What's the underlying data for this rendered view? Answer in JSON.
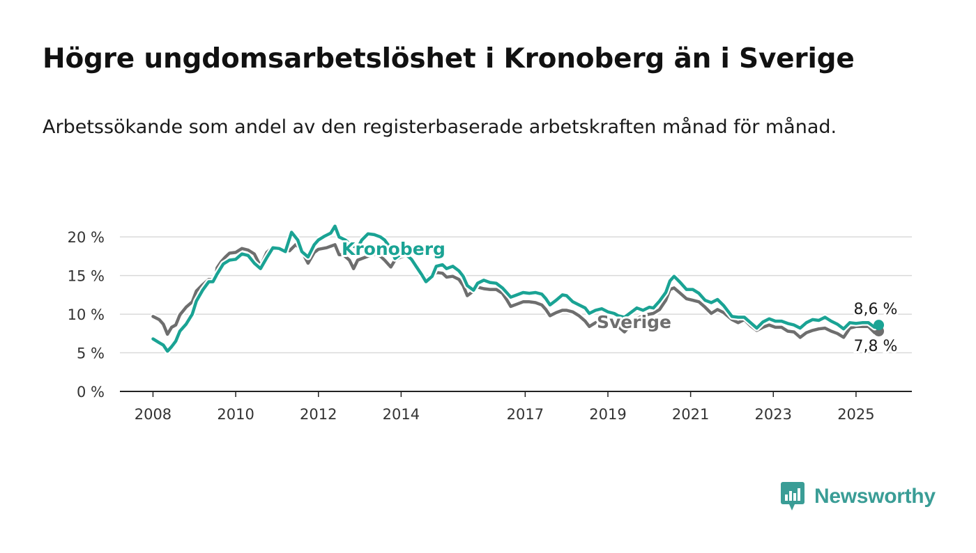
{
  "title": "Högre ungdomsarbetslöshet i Kronoberg än i Sverige",
  "subtitle": "Arbetssökande som andel av den registerbaserade arbetskraften månad för månad.",
  "logo": {
    "text": "Newsworthy",
    "color": "#3a9d96"
  },
  "chart_data": {
    "type": "line",
    "y_ticks": [
      "0 %",
      "5 %",
      "10 %",
      "15 %",
      "20 %"
    ],
    "y_tick_values": [
      0,
      5,
      10,
      15,
      20
    ],
    "ylim": [
      0,
      22
    ],
    "x_ticks": [
      "2008",
      "2010",
      "2012",
      "2014",
      "2017",
      "2019",
      "2021",
      "2023",
      "2025"
    ],
    "x_tick_values": [
      2008,
      2010,
      2012,
      2014,
      2017,
      2019,
      2021,
      2023,
      2025
    ],
    "xlim": [
      2007.2,
      2026.35
    ],
    "grid": true,
    "series": [
      {
        "name": "Sverige",
        "color": "#6e6e6e",
        "end_label": "7,8 %",
        "points": [
          [
            2008.0,
            9.7
          ],
          [
            2008.15,
            9.3
          ],
          [
            2008.25,
            8.7
          ],
          [
            2008.35,
            7.4
          ],
          [
            2008.45,
            8.3
          ],
          [
            2008.55,
            8.6
          ],
          [
            2008.65,
            9.9
          ],
          [
            2008.8,
            10.9
          ],
          [
            2008.95,
            11.6
          ],
          [
            2009.05,
            13.0
          ],
          [
            2009.2,
            13.8
          ],
          [
            2009.35,
            14.5
          ],
          [
            2009.5,
            14.4
          ],
          [
            2009.55,
            16.0
          ],
          [
            2009.65,
            16.8
          ],
          [
            2009.75,
            17.4
          ],
          [
            2009.85,
            17.9
          ],
          [
            2010.0,
            18.0
          ],
          [
            2010.15,
            18.5
          ],
          [
            2010.3,
            18.3
          ],
          [
            2010.45,
            17.8
          ],
          [
            2010.6,
            16.2
          ],
          [
            2010.75,
            18.0
          ],
          [
            2010.9,
            18.7
          ],
          [
            2011.1,
            18.4
          ],
          [
            2011.3,
            18.2
          ],
          [
            2011.45,
            19.0
          ],
          [
            2011.55,
            18.6
          ],
          [
            2011.65,
            17.6
          ],
          [
            2011.75,
            16.6
          ],
          [
            2011.9,
            18.0
          ],
          [
            2012.0,
            18.4
          ],
          [
            2012.2,
            18.6
          ],
          [
            2012.3,
            18.8
          ],
          [
            2012.4,
            19.0
          ],
          [
            2012.5,
            17.7
          ],
          [
            2012.6,
            17.7
          ],
          [
            2012.75,
            17.0
          ],
          [
            2012.85,
            15.9
          ],
          [
            2012.95,
            17.0
          ],
          [
            2013.1,
            17.3
          ],
          [
            2013.25,
            17.6
          ],
          [
            2013.4,
            17.8
          ],
          [
            2013.5,
            17.5
          ],
          [
            2013.6,
            17.0
          ],
          [
            2013.75,
            16.1
          ],
          [
            2013.85,
            17.0
          ],
          [
            2013.95,
            17.3
          ],
          [
            2014.1,
            17.6
          ],
          [
            2014.25,
            17.1
          ],
          [
            2014.35,
            16.2
          ],
          [
            2014.5,
            15.3
          ],
          [
            2014.6,
            14.2
          ],
          [
            2014.75,
            14.8
          ],
          [
            2014.85,
            15.4
          ],
          [
            2015.0,
            15.3
          ],
          [
            2015.1,
            14.8
          ],
          [
            2015.25,
            14.9
          ],
          [
            2015.4,
            14.5
          ],
          [
            2015.5,
            13.7
          ],
          [
            2015.6,
            12.4
          ],
          [
            2015.75,
            13.0
          ],
          [
            2015.85,
            13.5
          ],
          [
            2016.0,
            13.3
          ],
          [
            2016.15,
            13.2
          ],
          [
            2016.3,
            13.2
          ],
          [
            2016.45,
            12.7
          ],
          [
            2016.55,
            11.9
          ],
          [
            2016.65,
            11.0
          ],
          [
            2016.8,
            11.3
          ],
          [
            2016.95,
            11.6
          ],
          [
            2017.1,
            11.6
          ],
          [
            2017.25,
            11.5
          ],
          [
            2017.4,
            11.2
          ],
          [
            2017.5,
            10.6
          ],
          [
            2017.6,
            9.8
          ],
          [
            2017.75,
            10.2
          ],
          [
            2017.9,
            10.5
          ],
          [
            2018.0,
            10.5
          ],
          [
            2018.15,
            10.3
          ],
          [
            2018.3,
            9.8
          ],
          [
            2018.45,
            9.1
          ],
          [
            2018.55,
            8.4
          ],
          [
            2018.7,
            8.9
          ],
          [
            2018.85,
            9.2
          ],
          [
            2019.0,
            9.2
          ],
          [
            2019.15,
            8.8
          ],
          [
            2019.25,
            8.4
          ],
          [
            2019.4,
            7.7
          ],
          [
            2019.55,
            8.6
          ],
          [
            2019.7,
            9.4
          ],
          [
            2019.85,
            9.8
          ],
          [
            2020.0,
            10.0
          ],
          [
            2020.1,
            10.1
          ],
          [
            2020.25,
            10.6
          ],
          [
            2020.4,
            11.8
          ],
          [
            2020.5,
            13.2
          ],
          [
            2020.6,
            13.4
          ],
          [
            2020.75,
            12.7
          ],
          [
            2020.9,
            12.0
          ],
          [
            2021.05,
            11.8
          ],
          [
            2021.2,
            11.6
          ],
          [
            2021.35,
            10.9
          ],
          [
            2021.5,
            10.1
          ],
          [
            2021.65,
            10.6
          ],
          [
            2021.8,
            10.2
          ],
          [
            2022.0,
            9.3
          ],
          [
            2022.15,
            8.9
          ],
          [
            2022.3,
            9.3
          ],
          [
            2022.45,
            8.5
          ],
          [
            2022.6,
            7.9
          ],
          [
            2022.75,
            8.3
          ],
          [
            2022.9,
            8.6
          ],
          [
            2023.05,
            8.3
          ],
          [
            2023.2,
            8.3
          ],
          [
            2023.35,
            7.8
          ],
          [
            2023.5,
            7.7
          ],
          [
            2023.65,
            7.0
          ],
          [
            2023.8,
            7.6
          ],
          [
            2023.95,
            7.9
          ],
          [
            2024.1,
            8.1
          ],
          [
            2024.25,
            8.2
          ],
          [
            2024.4,
            7.8
          ],
          [
            2024.55,
            7.5
          ],
          [
            2024.7,
            7.0
          ],
          [
            2024.85,
            8.2
          ],
          [
            2025.0,
            8.4
          ],
          [
            2025.15,
            8.4
          ],
          [
            2025.3,
            8.4
          ],
          [
            2025.45,
            7.6
          ],
          [
            2025.55,
            7.8
          ]
        ]
      },
      {
        "name": "Kronoberg",
        "color": "#1aa394",
        "end_label": "8,6 %",
        "points": [
          [
            2008.0,
            6.8
          ],
          [
            2008.15,
            6.3
          ],
          [
            2008.25,
            6.0
          ],
          [
            2008.35,
            5.2
          ],
          [
            2008.45,
            5.8
          ],
          [
            2008.55,
            6.5
          ],
          [
            2008.65,
            7.8
          ],
          [
            2008.8,
            8.7
          ],
          [
            2008.95,
            10.0
          ],
          [
            2009.05,
            11.7
          ],
          [
            2009.2,
            13.1
          ],
          [
            2009.35,
            14.2
          ],
          [
            2009.45,
            14.2
          ],
          [
            2009.55,
            15.2
          ],
          [
            2009.7,
            16.5
          ],
          [
            2009.85,
            17.0
          ],
          [
            2010.0,
            17.1
          ],
          [
            2010.15,
            17.8
          ],
          [
            2010.3,
            17.6
          ],
          [
            2010.45,
            16.6
          ],
          [
            2010.6,
            15.9
          ],
          [
            2010.75,
            17.3
          ],
          [
            2010.9,
            18.6
          ],
          [
            2011.05,
            18.5
          ],
          [
            2011.2,
            18.1
          ],
          [
            2011.35,
            20.6
          ],
          [
            2011.5,
            19.6
          ],
          [
            2011.6,
            18.1
          ],
          [
            2011.75,
            17.4
          ],
          [
            2011.9,
            19.0
          ],
          [
            2012.0,
            19.6
          ],
          [
            2012.15,
            20.1
          ],
          [
            2012.3,
            20.5
          ],
          [
            2012.4,
            21.4
          ],
          [
            2012.5,
            20.0
          ],
          [
            2012.65,
            19.6
          ],
          [
            2012.8,
            18.9
          ],
          [
            2012.95,
            18.6
          ],
          [
            2013.05,
            19.6
          ],
          [
            2013.2,
            20.4
          ],
          [
            2013.35,
            20.3
          ],
          [
            2013.5,
            20.0
          ],
          [
            2013.6,
            19.6
          ],
          [
            2013.75,
            18.5
          ],
          [
            2013.85,
            17.2
          ],
          [
            2013.95,
            17.6
          ],
          [
            2014.1,
            17.8
          ],
          [
            2014.25,
            17.1
          ],
          [
            2014.35,
            16.3
          ],
          [
            2014.5,
            15.1
          ],
          [
            2014.6,
            14.2
          ],
          [
            2014.75,
            14.9
          ],
          [
            2014.85,
            16.2
          ],
          [
            2015.0,
            16.4
          ],
          [
            2015.1,
            15.9
          ],
          [
            2015.25,
            16.2
          ],
          [
            2015.4,
            15.6
          ],
          [
            2015.5,
            14.9
          ],
          [
            2015.6,
            13.7
          ],
          [
            2015.75,
            13.1
          ],
          [
            2015.85,
            14.0
          ],
          [
            2016.0,
            14.4
          ],
          [
            2016.15,
            14.1
          ],
          [
            2016.3,
            14.0
          ],
          [
            2016.45,
            13.4
          ],
          [
            2016.55,
            12.8
          ],
          [
            2016.65,
            12.2
          ],
          [
            2016.8,
            12.5
          ],
          [
            2016.95,
            12.8
          ],
          [
            2017.1,
            12.7
          ],
          [
            2017.25,
            12.8
          ],
          [
            2017.4,
            12.6
          ],
          [
            2017.5,
            12.0
          ],
          [
            2017.6,
            11.2
          ],
          [
            2017.75,
            11.8
          ],
          [
            2017.9,
            12.5
          ],
          [
            2018.0,
            12.4
          ],
          [
            2018.15,
            11.6
          ],
          [
            2018.3,
            11.2
          ],
          [
            2018.45,
            10.8
          ],
          [
            2018.55,
            10.1
          ],
          [
            2018.7,
            10.5
          ],
          [
            2018.85,
            10.7
          ],
          [
            2019.0,
            10.3
          ],
          [
            2019.15,
            10.1
          ],
          [
            2019.25,
            9.8
          ],
          [
            2019.4,
            9.6
          ],
          [
            2019.55,
            10.2
          ],
          [
            2019.7,
            10.8
          ],
          [
            2019.85,
            10.5
          ],
          [
            2020.0,
            10.9
          ],
          [
            2020.1,
            10.8
          ],
          [
            2020.25,
            11.7
          ],
          [
            2020.4,
            12.8
          ],
          [
            2020.5,
            14.3
          ],
          [
            2020.6,
            14.9
          ],
          [
            2020.75,
            14.1
          ],
          [
            2020.9,
            13.2
          ],
          [
            2021.05,
            13.2
          ],
          [
            2021.2,
            12.7
          ],
          [
            2021.35,
            11.8
          ],
          [
            2021.5,
            11.5
          ],
          [
            2021.65,
            11.9
          ],
          [
            2021.8,
            11.1
          ],
          [
            2022.0,
            9.7
          ],
          [
            2022.15,
            9.6
          ],
          [
            2022.3,
            9.6
          ],
          [
            2022.45,
            8.9
          ],
          [
            2022.6,
            8.2
          ],
          [
            2022.75,
            9.0
          ],
          [
            2022.9,
            9.4
          ],
          [
            2023.05,
            9.1
          ],
          [
            2023.2,
            9.1
          ],
          [
            2023.35,
            8.8
          ],
          [
            2023.5,
            8.6
          ],
          [
            2023.65,
            8.2
          ],
          [
            2023.8,
            8.9
          ],
          [
            2023.95,
            9.3
          ],
          [
            2024.1,
            9.2
          ],
          [
            2024.25,
            9.6
          ],
          [
            2024.4,
            9.1
          ],
          [
            2024.55,
            8.7
          ],
          [
            2024.7,
            8.1
          ],
          [
            2024.85,
            8.9
          ],
          [
            2025.0,
            8.8
          ],
          [
            2025.15,
            8.9
          ],
          [
            2025.3,
            8.9
          ],
          [
            2025.45,
            8.3
          ],
          [
            2025.55,
            8.6
          ]
        ]
      }
    ]
  }
}
